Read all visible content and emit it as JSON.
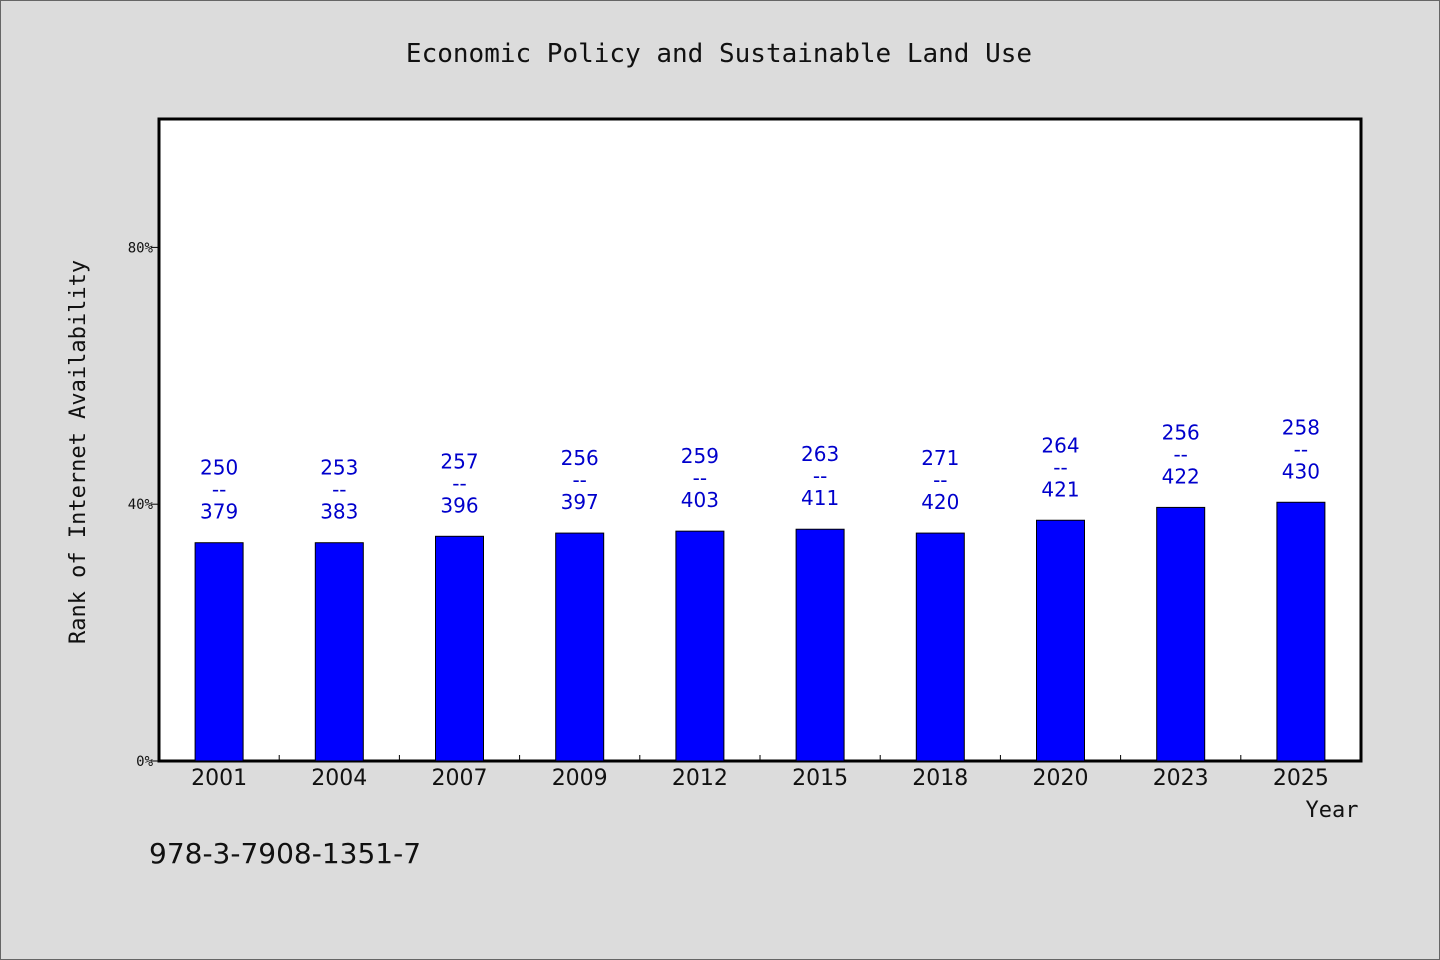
{
  "chart_data": {
    "type": "bar",
    "title": "Economic Policy and Sustainable Land Use",
    "xlabel": "Year",
    "ylabel": "Rank of Internet Availability",
    "categories": [
      "2001",
      "2004",
      "2007",
      "2009",
      "2012",
      "2015",
      "2018",
      "2020",
      "2023",
      "2025"
    ],
    "values": [
      34,
      34,
      35,
      35.5,
      35.8,
      36.1,
      35.5,
      37.5,
      39.5,
      40.3
    ],
    "value_unit": "%",
    "ylim": [
      0,
      100
    ],
    "yticks": [
      0,
      40,
      80
    ],
    "ytick_labels": [
      "0%",
      "40%",
      "80%"
    ],
    "annotations": [
      {
        "top": "250",
        "sep": "--",
        "bottom": "379"
      },
      {
        "top": "253",
        "sep": "--",
        "bottom": "383"
      },
      {
        "top": "257",
        "sep": "--",
        "bottom": "396"
      },
      {
        "top": "256",
        "sep": "--",
        "bottom": "397"
      },
      {
        "top": "259",
        "sep": "--",
        "bottom": "403"
      },
      {
        "top": "263",
        "sep": "--",
        "bottom": "411"
      },
      {
        "top": "271",
        "sep": "--",
        "bottom": "420"
      },
      {
        "top": "264",
        "sep": "--",
        "bottom": "421"
      },
      {
        "top": "256",
        "sep": "--",
        "bottom": "422"
      },
      {
        "top": "258",
        "sep": "--",
        "bottom": "430"
      }
    ],
    "bar_color": "#0000ff",
    "label_color": "#0000cc",
    "grid": false,
    "legend": "none"
  },
  "footer": {
    "isbn": "978-3-7908-1351-7"
  },
  "colors": {
    "background": "#dcdcdc",
    "plot_background": "#ffffff"
  }
}
